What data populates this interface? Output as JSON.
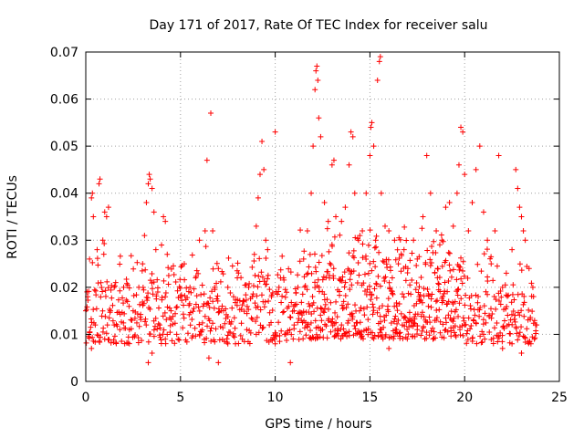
{
  "chart_data": {
    "type": "scatter",
    "title": "Day 171 of 2017, Rate Of TEC Index for receiver salu",
    "xlabel": "GPS time / hours",
    "ylabel": "ROTI / TECUs",
    "xlim": [
      0,
      25
    ],
    "ylim": [
      0,
      0.07
    ],
    "x_ticks": [
      "0",
      "5",
      "10",
      "15",
      "20",
      "25"
    ],
    "y_ticks": [
      "0",
      "0.01",
      "0.02",
      "0.03",
      "0.04",
      "0.05",
      "0.06",
      "0.07"
    ],
    "grid": true,
    "marker": "plus",
    "color": "#ff0000",
    "series": [
      {
        "points": [
          [
            0.1,
            0.018
          ],
          [
            0.2,
            0.026
          ],
          [
            0.3,
            0.039
          ],
          [
            0.35,
            0.04
          ],
          [
            0.4,
            0.035
          ],
          [
            0.5,
            0.012
          ],
          [
            0.6,
            0.028
          ],
          [
            0.7,
            0.042
          ],
          [
            0.75,
            0.043
          ],
          [
            0.8,
            0.021
          ],
          [
            0.9,
            0.03
          ],
          [
            1.0,
            0.036
          ],
          [
            1.1,
            0.035
          ],
          [
            1.2,
            0.037
          ],
          [
            1.3,
            0.015
          ],
          [
            1.5,
            0.02
          ],
          [
            1.8,
            0.011
          ],
          [
            2.0,
            0.02
          ],
          [
            2.2,
            0.017
          ],
          [
            2.5,
            0.015
          ],
          [
            2.8,
            0.02
          ],
          [
            3.0,
            0.025
          ],
          [
            3.1,
            0.031
          ],
          [
            3.2,
            0.038
          ],
          [
            3.3,
            0.042
          ],
          [
            3.35,
            0.044
          ],
          [
            3.4,
            0.043
          ],
          [
            3.5,
            0.041
          ],
          [
            3.6,
            0.036
          ],
          [
            3.7,
            0.028
          ],
          [
            3.8,
            0.019
          ],
          [
            3.9,
            0.012
          ],
          [
            4.0,
            0.029
          ],
          [
            4.1,
            0.035
          ],
          [
            4.2,
            0.034
          ],
          [
            4.3,
            0.027
          ],
          [
            4.5,
            0.015
          ],
          [
            4.8,
            0.01
          ],
          [
            5.0,
            0.018
          ],
          [
            5.2,
            0.025
          ],
          [
            5.5,
            0.02
          ],
          [
            5.8,
            0.022
          ],
          [
            6.0,
            0.03
          ],
          [
            6.2,
            0.016
          ],
          [
            6.3,
            0.032
          ],
          [
            6.4,
            0.047
          ],
          [
            6.6,
            0.057
          ],
          [
            6.7,
            0.032
          ],
          [
            6.8,
            0.02
          ],
          [
            7.0,
            0.024
          ],
          [
            7.2,
            0.016
          ],
          [
            7.5,
            0.02
          ],
          [
            7.8,
            0.018
          ],
          [
            8.0,
            0.022
          ],
          [
            8.3,
            0.017
          ],
          [
            8.6,
            0.02
          ],
          [
            8.9,
            0.027
          ],
          [
            9.0,
            0.033
          ],
          [
            9.1,
            0.039
          ],
          [
            9.2,
            0.044
          ],
          [
            9.3,
            0.051
          ],
          [
            9.4,
            0.045
          ],
          [
            9.5,
            0.03
          ],
          [
            9.6,
            0.028
          ],
          [
            9.8,
            0.018
          ],
          [
            10.0,
            0.053
          ],
          [
            10.2,
            0.02
          ],
          [
            10.5,
            0.01
          ],
          [
            10.8,
            0.004
          ],
          [
            11.0,
            0.015
          ],
          [
            11.2,
            0.02
          ],
          [
            11.5,
            0.026
          ],
          [
            11.7,
            0.032
          ],
          [
            11.9,
            0.04
          ],
          [
            12.0,
            0.05
          ],
          [
            12.1,
            0.062
          ],
          [
            12.15,
            0.066
          ],
          [
            12.2,
            0.067
          ],
          [
            12.25,
            0.064
          ],
          [
            12.3,
            0.056
          ],
          [
            12.4,
            0.052
          ],
          [
            12.6,
            0.038
          ],
          [
            12.8,
            0.034
          ],
          [
            13.0,
            0.046
          ],
          [
            13.1,
            0.047
          ],
          [
            13.2,
            0.035
          ],
          [
            13.5,
            0.034
          ],
          [
            13.7,
            0.037
          ],
          [
            13.9,
            0.046
          ],
          [
            14.0,
            0.053
          ],
          [
            14.1,
            0.052
          ],
          [
            14.2,
            0.04
          ],
          [
            14.4,
            0.03
          ],
          [
            14.6,
            0.032
          ],
          [
            14.8,
            0.04
          ],
          [
            15.0,
            0.048
          ],
          [
            15.05,
            0.054
          ],
          [
            15.1,
            0.055
          ],
          [
            15.2,
            0.05
          ],
          [
            15.3,
            0.03
          ],
          [
            15.4,
            0.064
          ],
          [
            15.5,
            0.068
          ],
          [
            15.55,
            0.069
          ],
          [
            15.6,
            0.04
          ],
          [
            15.8,
            0.033
          ],
          [
            16.0,
            0.032
          ],
          [
            16.3,
            0.03
          ],
          [
            16.5,
            0.025
          ],
          [
            16.8,
            0.028
          ],
          [
            17.0,
            0.024
          ],
          [
            17.3,
            0.03
          ],
          [
            17.5,
            0.026
          ],
          [
            17.8,
            0.035
          ],
          [
            18.0,
            0.048
          ],
          [
            18.2,
            0.04
          ],
          [
            18.5,
            0.032
          ],
          [
            18.8,
            0.03
          ],
          [
            19.0,
            0.037
          ],
          [
            19.2,
            0.038
          ],
          [
            19.4,
            0.033
          ],
          [
            19.6,
            0.04
          ],
          [
            19.7,
            0.046
          ],
          [
            19.8,
            0.054
          ],
          [
            19.9,
            0.053
          ],
          [
            20.0,
            0.044
          ],
          [
            20.2,
            0.032
          ],
          [
            20.4,
            0.038
          ],
          [
            20.6,
            0.045
          ],
          [
            20.8,
            0.05
          ],
          [
            21.0,
            0.036
          ],
          [
            21.2,
            0.03
          ],
          [
            21.4,
            0.025
          ],
          [
            21.6,
            0.032
          ],
          [
            21.8,
            0.048
          ],
          [
            22.0,
            0.02
          ],
          [
            22.2,
            0.023
          ],
          [
            22.5,
            0.028
          ],
          [
            22.7,
            0.045
          ],
          [
            22.8,
            0.041
          ],
          [
            22.9,
            0.037
          ],
          [
            23.0,
            0.035
          ],
          [
            23.1,
            0.032
          ],
          [
            23.2,
            0.03
          ],
          [
            23.4,
            0.024
          ],
          [
            23.6,
            0.02
          ],
          [
            23.8,
            0.012
          ],
          [
            0.0,
            0.015
          ],
          [
            0.3,
            0.007
          ],
          [
            1.0,
            0.009
          ],
          [
            1.5,
            0.012
          ],
          [
            2.3,
            0.011
          ],
          [
            3.3,
            0.004
          ],
          [
            3.5,
            0.006
          ],
          [
            4.2,
            0.009
          ],
          [
            6.0,
            0.01
          ],
          [
            6.5,
            0.005
          ],
          [
            7.0,
            0.004
          ],
          [
            7.5,
            0.008
          ],
          [
            8.5,
            0.011
          ],
          [
            9.0,
            0.01
          ],
          [
            10.0,
            0.008
          ],
          [
            11.0,
            0.012
          ],
          [
            12.5,
            0.011
          ],
          [
            13.5,
            0.012
          ],
          [
            14.5,
            0.01
          ],
          [
            16.0,
            0.007
          ],
          [
            16.5,
            0.013
          ],
          [
            17.5,
            0.011
          ],
          [
            18.5,
            0.013
          ],
          [
            19.0,
            0.011
          ],
          [
            20.0,
            0.012
          ],
          [
            21.0,
            0.01
          ],
          [
            22.0,
            0.007
          ],
          [
            22.5,
            0.008
          ],
          [
            23.0,
            0.006
          ],
          [
            23.5,
            0.008
          ]
        ]
      }
    ],
    "density_bands": [
      {
        "x0": 0.0,
        "x1": 11.3,
        "ylo": 0.008,
        "yhi": 0.026,
        "density": 9
      },
      {
        "x0": 11.3,
        "x1": 20.0,
        "ylo": 0.009,
        "yhi": 0.03,
        "density": 16
      },
      {
        "x0": 20.0,
        "x1": 23.8,
        "ylo": 0.008,
        "yhi": 0.025,
        "density": 10
      }
    ]
  }
}
